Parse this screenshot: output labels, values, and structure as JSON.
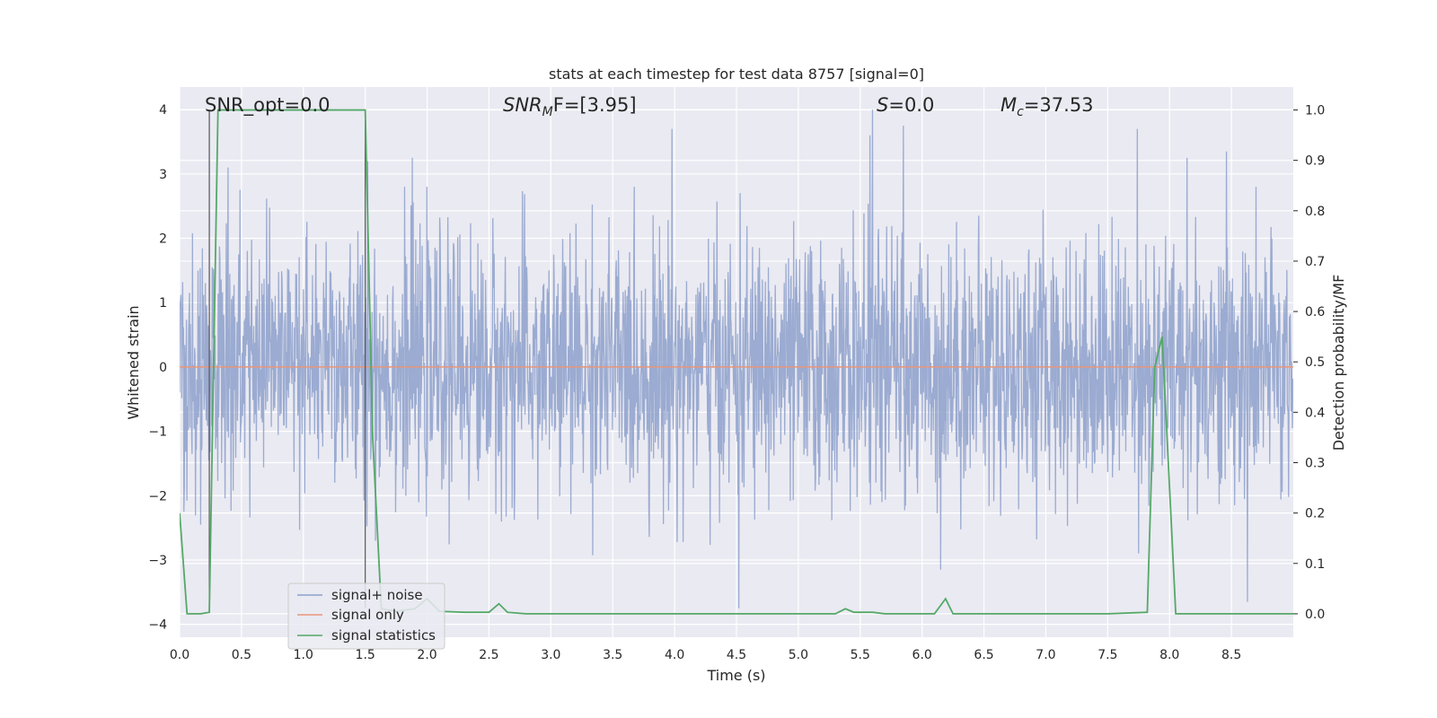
{
  "chart_data": {
    "type": "line",
    "title": "stats at each timestep for test data 8757 [signal=0]",
    "xlabel": "Time (s)",
    "ylabel_left": "Whitened strain",
    "ylabel_right": "Detection probability/MF",
    "xlim": [
      0.0,
      9.0
    ],
    "ylim_left": [
      -4.2,
      4.35
    ],
    "ylim_right": [
      -0.0465,
      1.0455
    ],
    "x_ticks": [
      "0.0",
      "0.5",
      "1.0",
      "1.5",
      "2.0",
      "2.5",
      "3.0",
      "3.5",
      "4.0",
      "4.5",
      "5.0",
      "5.5",
      "6.0",
      "6.5",
      "7.0",
      "7.5",
      "8.0",
      "8.5"
    ],
    "y_left_ticks": [
      "4",
      "3",
      "2",
      "1",
      "0",
      "−1",
      "−2",
      "−3",
      "−4"
    ],
    "y_right_ticks": [
      "1.0",
      "0.9",
      "0.8",
      "0.7",
      "0.6",
      "0.5",
      "0.4",
      "0.3",
      "0.2",
      "0.1",
      "0.0"
    ],
    "grid": true,
    "legend_position": "lower-left",
    "annotations": {
      "snr_opt": "SNR_opt=0.0",
      "snr_mf_italic": "SNR",
      "snr_mf_sub": "M",
      "snr_mf_rest": "F=[3.95]",
      "s_italic": "S",
      "s_rest": "=0.0",
      "mc_italic": "M",
      "mc_sub": "c",
      "mc_rest": "=37.53"
    },
    "vlines_x": [
      0.24,
      1.5
    ],
    "series": [
      {
        "name": "signal+ noise",
        "color": "#8da0cb",
        "kind": "noise",
        "envelope": {
          "typical_abs": 1.45,
          "peak_max": 4.0,
          "peak_min": -3.75
        },
        "notable_peaks": [
          [
            0.39,
            3.1
          ],
          [
            1.52,
            3.2
          ],
          [
            1.88,
            3.25
          ],
          [
            3.98,
            3.7
          ],
          [
            5.58,
            3.6
          ],
          [
            5.6,
            4.0
          ],
          [
            5.85,
            3.75
          ],
          [
            7.74,
            3.7
          ],
          [
            8.14,
            3.25
          ],
          [
            8.46,
            3.35
          ],
          [
            4.52,
            -3.75
          ],
          [
            6.15,
            -3.15
          ],
          [
            8.63,
            -3.65
          ]
        ]
      },
      {
        "name": "signal only",
        "color": "#e8967a",
        "x": [
          0.0,
          9.0
        ],
        "y": [
          0.0,
          0.0
        ]
      },
      {
        "name": "signal statistics",
        "color": "#55a868",
        "axis": "right",
        "x": [
          0.0,
          0.06,
          0.17,
          0.24,
          0.31,
          0.4,
          0.6,
          0.8,
          1.0,
          1.2,
          1.4,
          1.5,
          1.56,
          1.63,
          1.75,
          1.9,
          2.0,
          2.1,
          2.3,
          2.5,
          2.58,
          2.65,
          2.8,
          3.5,
          4.0,
          4.5,
          5.0,
          5.3,
          5.38,
          5.45,
          5.6,
          5.7,
          6.1,
          6.19,
          6.25,
          6.4,
          7.0,
          7.5,
          7.82,
          7.88,
          7.94,
          7.99,
          8.05,
          8.3,
          8.6,
          8.8,
          9.0
        ],
        "y": [
          0.2,
          0.0,
          0.0,
          0.003,
          1.0,
          1.0,
          1.0,
          1.0,
          1.0,
          1.0,
          1.0,
          1.0,
          0.35,
          0.01,
          0.005,
          0.01,
          0.03,
          0.005,
          0.003,
          0.003,
          0.02,
          0.003,
          0.0,
          0.0,
          0.0,
          0.0,
          0.0,
          0.0,
          0.01,
          0.003,
          0.003,
          0.0,
          0.0,
          0.03,
          0.0,
          0.0,
          0.0,
          0.0,
          0.003,
          0.49,
          0.55,
          0.3,
          0.0,
          0.0,
          0.0,
          0.0,
          0.0
        ]
      }
    ]
  }
}
